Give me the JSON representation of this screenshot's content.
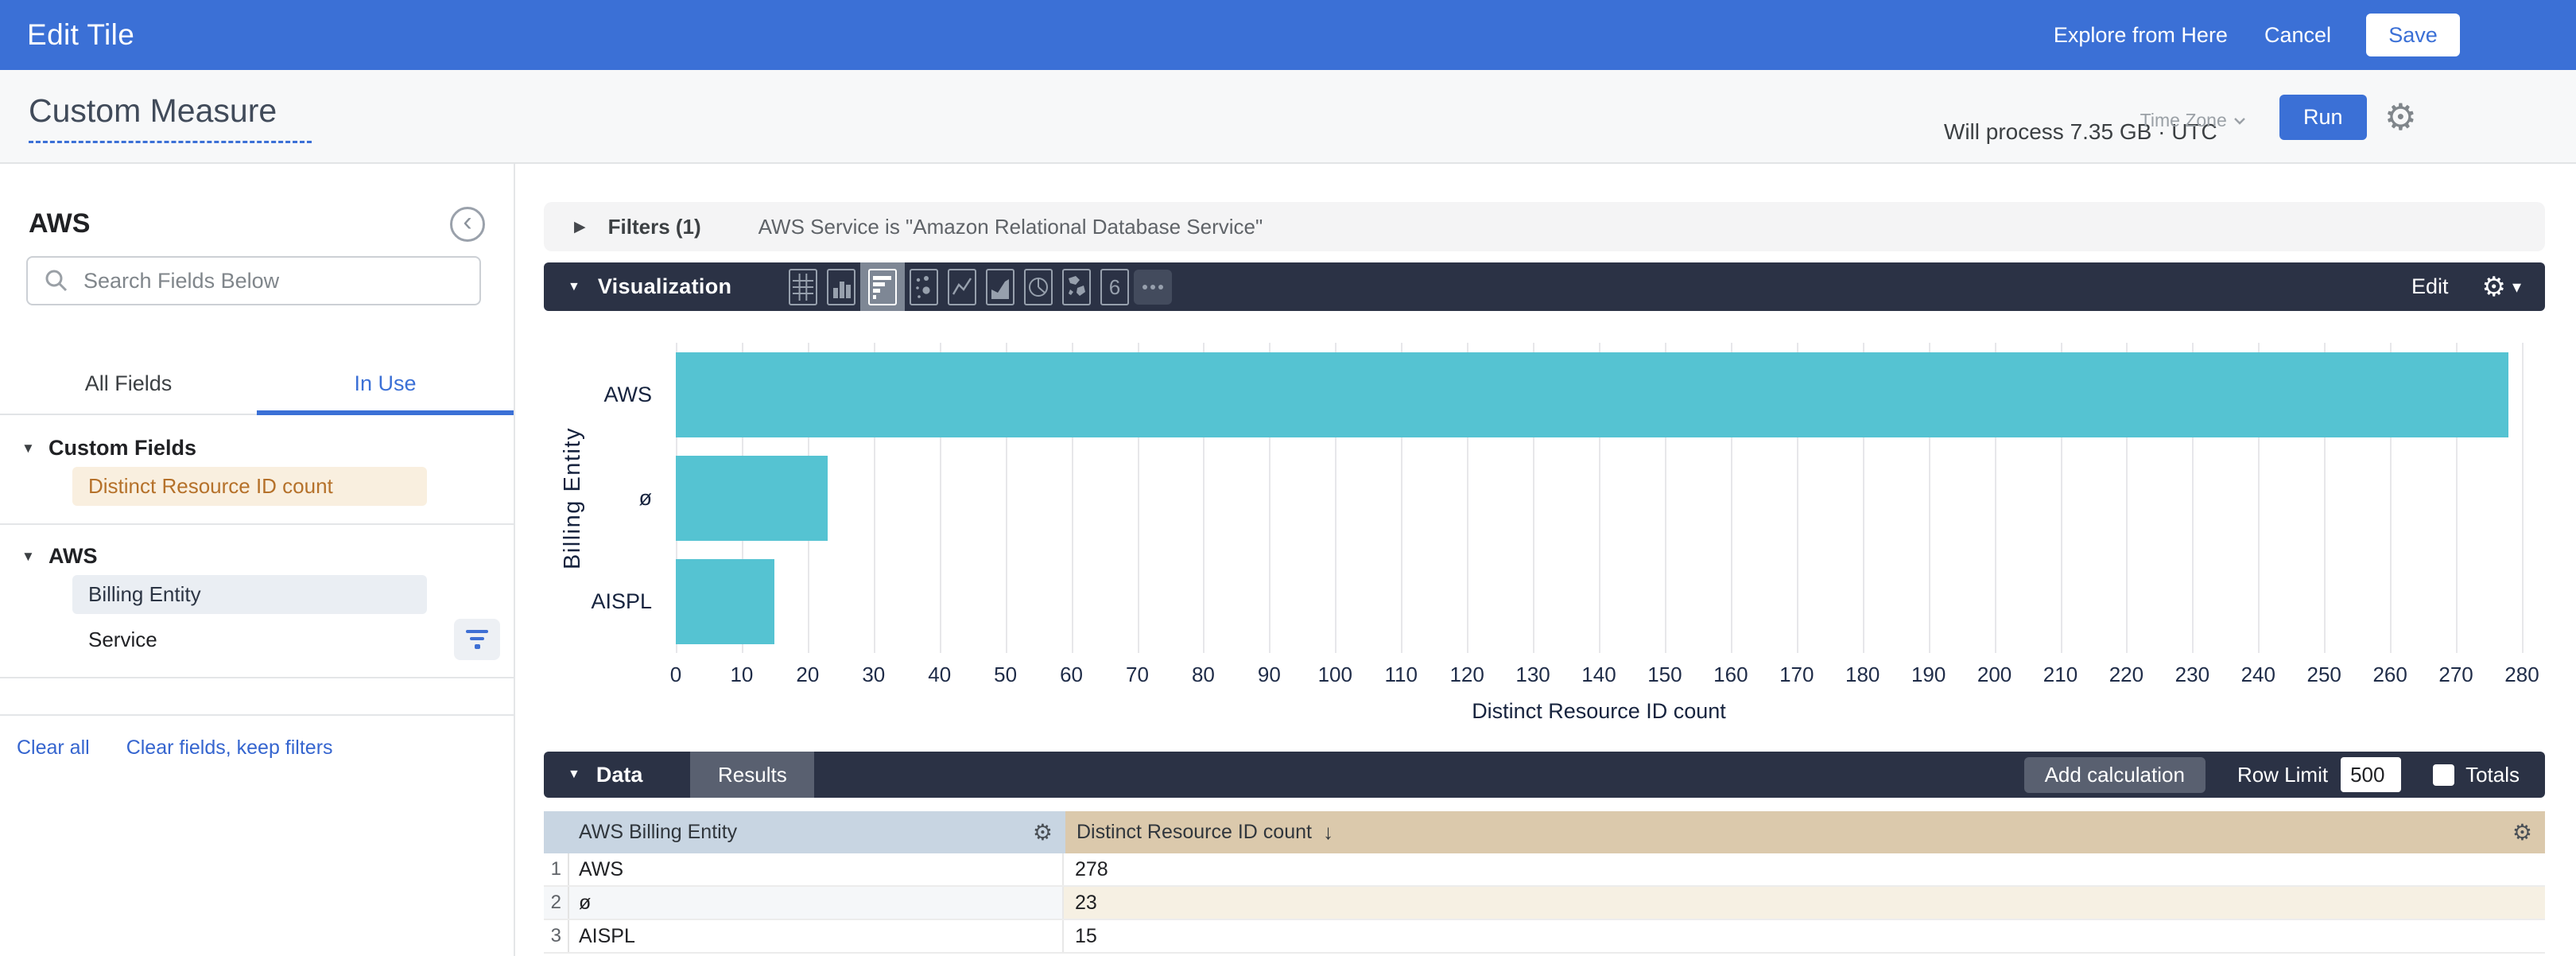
{
  "topbar": {
    "title": "Edit Tile",
    "explore_label": "Explore from Here",
    "cancel_label": "Cancel",
    "save_label": "Save"
  },
  "subheader": {
    "title": "Custom Measure",
    "timezone_label": "Time Zone",
    "process_text": "Will process 7.35 GB · UTC",
    "run_label": "Run"
  },
  "sidebar": {
    "explore_name": "AWS",
    "search_placeholder": "Search Fields Below",
    "tabs": [
      {
        "label": "All Fields",
        "active": false
      },
      {
        "label": "In Use",
        "active": true
      }
    ],
    "sections": [
      {
        "title": "Custom Fields",
        "fields": [
          {
            "label": "Distinct Resource ID count",
            "style": "measure",
            "filtered": false
          }
        ]
      },
      {
        "title": "AWS",
        "fields": [
          {
            "label": "Billing Entity",
            "style": "dimension",
            "filtered": false
          },
          {
            "label": "Service",
            "style": "plain",
            "filtered": true
          }
        ]
      }
    ],
    "footer_links": [
      "Clear all",
      "Clear fields, keep filters"
    ]
  },
  "filters": {
    "toggle_label": "Filters (1)",
    "summary": "AWS Service is \"Amazon Relational Database Service\""
  },
  "viz": {
    "title": "Visualization",
    "edit_label": "Edit",
    "types": [
      {
        "name": "table",
        "selected": false
      },
      {
        "name": "column",
        "selected": false
      },
      {
        "name": "bar",
        "selected": true
      },
      {
        "name": "scatter",
        "selected": false
      },
      {
        "name": "line",
        "selected": false
      },
      {
        "name": "area",
        "selected": false
      },
      {
        "name": "pie",
        "selected": false
      },
      {
        "name": "map",
        "selected": false
      },
      {
        "name": "single-value",
        "selected": false
      },
      {
        "name": "more",
        "selected": false
      }
    ]
  },
  "chart_data": {
    "type": "bar",
    "orientation": "horizontal",
    "categories": [
      "AWS",
      "ø",
      "AISPL"
    ],
    "values": [
      278,
      23,
      15
    ],
    "series_name": "Distinct Resource ID count",
    "xlabel": "Distinct Resource ID count",
    "ylabel": "Billing Entity",
    "xlim": [
      0,
      280
    ],
    "xtick_step": 10,
    "grid": "vertical",
    "legend": "none",
    "bar_color": "#55c3d2"
  },
  "data_bar": {
    "title": "Data",
    "results_tab": "Results",
    "add_calculation_label": "Add calculation",
    "row_limit_label": "Row Limit",
    "row_limit_value": "500",
    "totals_label": "Totals"
  },
  "table": {
    "columns": [
      {
        "label": "AWS Billing Entity",
        "sorted": "none"
      },
      {
        "label": "Distinct Resource ID count",
        "sorted": "desc"
      }
    ],
    "sort_arrow": "↓",
    "rows": [
      {
        "num": "1",
        "dimension": "AWS",
        "measure": "278"
      },
      {
        "num": "2",
        "dimension": "ø",
        "measure": "23"
      },
      {
        "num": "3",
        "dimension": "AISPL",
        "measure": "15"
      }
    ]
  },
  "colors": {
    "accent_blue": "#3b70d6",
    "navy_bar": "#2b3245",
    "bar_teal": "#55c3d2",
    "measure_tan_header": "#dbc9ac",
    "dimension_blue_header": "#c8d5e2",
    "measure_pill_bg": "#f9efdf",
    "measure_pill_text": "#b5712a",
    "dimension_pill_bg": "#eaeef3"
  }
}
